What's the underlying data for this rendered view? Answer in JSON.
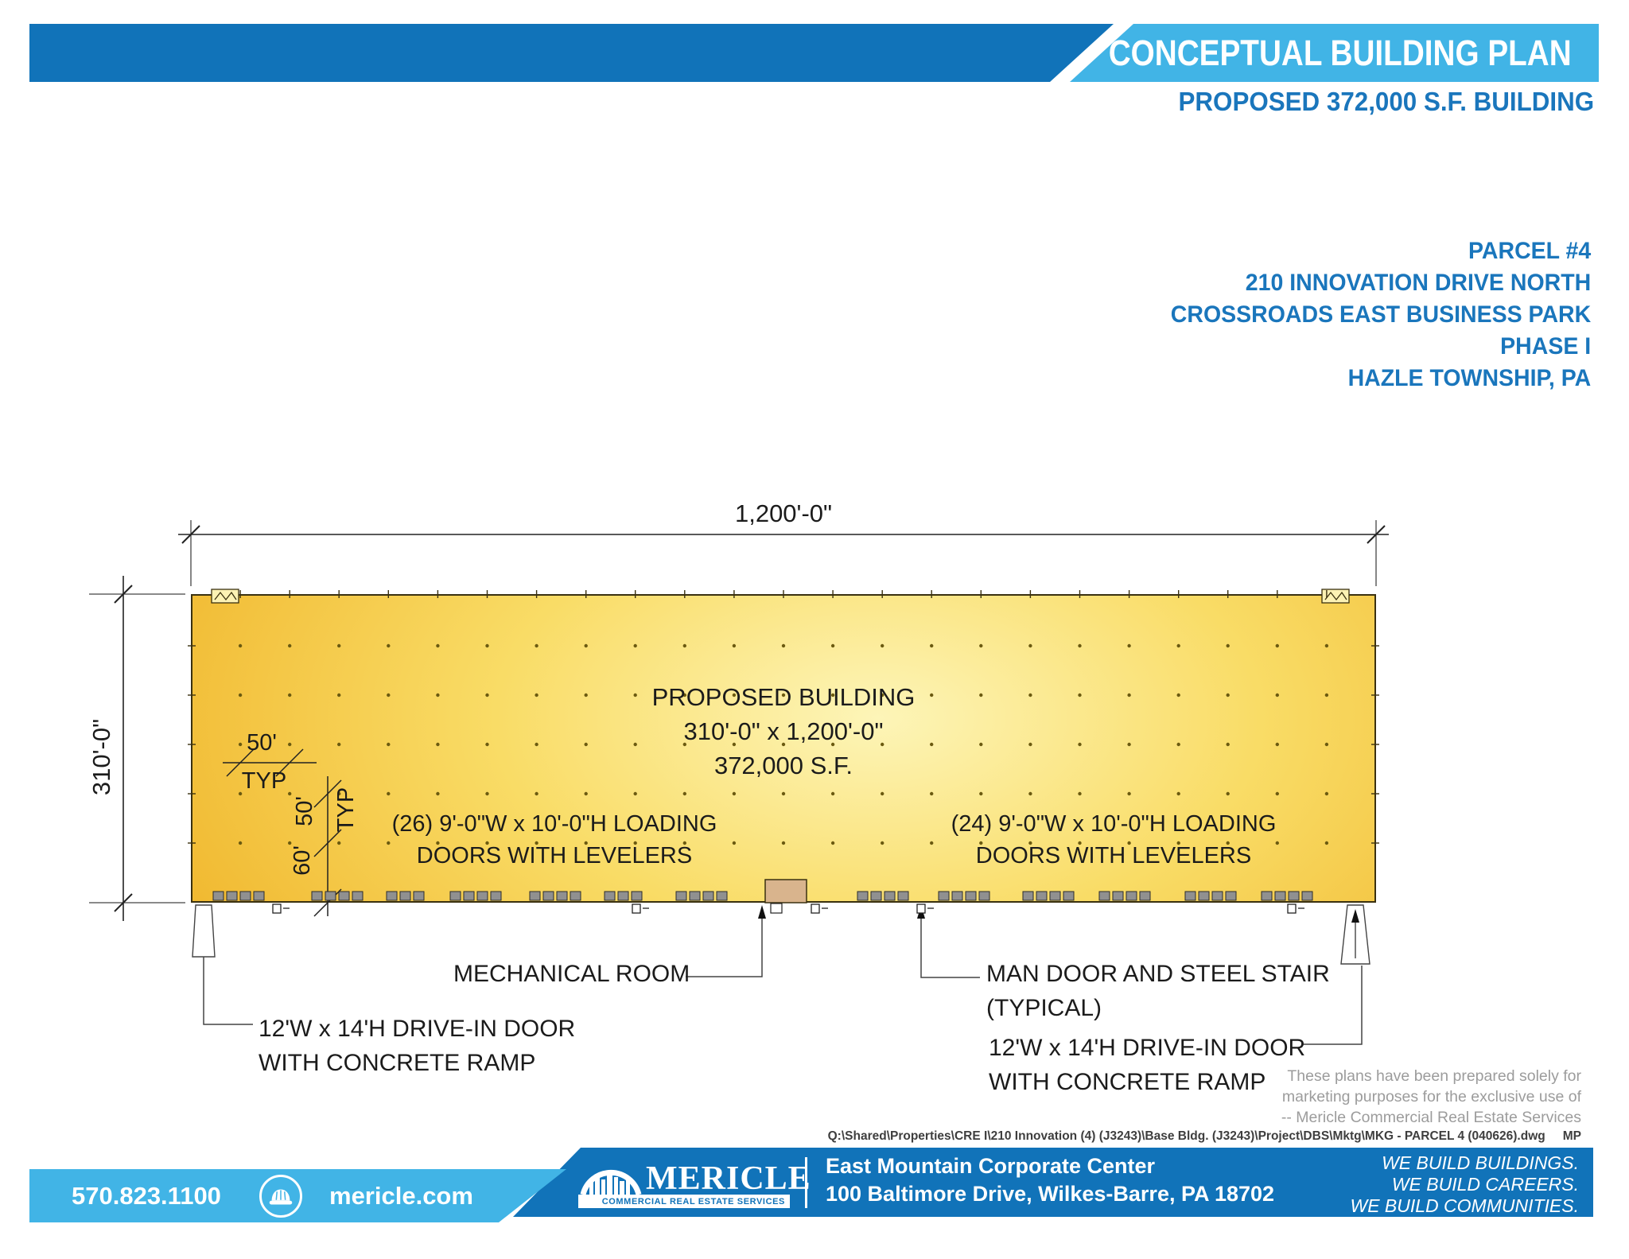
{
  "header": {
    "title": "CONCEPTUAL BUILDING PLAN",
    "subtitle": "PROPOSED 372,000 S.F. BUILDING"
  },
  "address": {
    "lines": [
      "PARCEL #4",
      "210 INNOVATION DRIVE NORTH",
      "CROSSROADS EAST BUSINESS PARK",
      "PHASE I",
      "HAZLE TOWNSHIP, PA"
    ]
  },
  "plan": {
    "dim_width": "1,200'-0\"",
    "dim_height": "310'-0\"",
    "building_title": "PROPOSED BUILDING",
    "building_dims": "310'-0\" x 1,200'-0\"",
    "building_area": "372,000 S.F.",
    "left_doors_line1": "(26) 9'-0\"W x 10'-0\"H LOADING",
    "left_doors_line2": "DOORS WITH LEVELERS",
    "right_doors_line1": "(24) 9'-0\"W x 10'-0\"H LOADING",
    "right_doors_line2": "DOORS WITH LEVELERS",
    "bay_width_label": "50'",
    "bay_width_typ": "TYP",
    "bay_depth_label": "50'",
    "bay_depth_typ": "TYP",
    "end_bay_label": "60'"
  },
  "callouts": {
    "mechanical": "MECHANICAL ROOM",
    "man_door_line1": "MAN DOOR AND STEEL STAIR",
    "man_door_line2": "(TYPICAL)",
    "left_drive_line1": "12'W x 14'H DRIVE-IN DOOR",
    "left_drive_line2": "WITH CONCRETE RAMP",
    "right_drive_line1": "12'W x 14'H DRIVE-IN DOOR",
    "right_drive_line2": "WITH CONCRETE RAMP"
  },
  "disclaimer": {
    "lines": [
      "These plans have been prepared solely for",
      "marketing purposes for the exclusive use of",
      "-- Mericle Commercial Real Estate Services"
    ]
  },
  "file_ref": {
    "path": "Q:\\Shared\\Properties\\CRE I\\210 Innovation (4) (J3243)\\Base Bldg. (J3243)\\Project\\DBS\\Mktg\\MKG - PARCEL 4 (040626).dwg",
    "initials": "MP"
  },
  "footer": {
    "phone": "570.823.1100",
    "website": "mericle.com",
    "logo_name": "MERICLE",
    "logo_tagline": "COMMERCIAL REAL ESTATE SERVICES",
    "address_line1": "East Mountain Corporate Center",
    "address_line2": "100 Baltimore Drive, Wilkes-Barre, PA 18702",
    "slogan_lines": [
      "WE BUILD BUILDINGS.",
      "WE BUILD CAREERS.",
      "WE BUILD COMMUNITIES."
    ]
  },
  "colors": {
    "dark_blue": "#1173b9",
    "light_blue": "#41b4e6",
    "text_blue": "#1a76bc",
    "building_gold": "#f0b62c",
    "building_light": "#fdf5b8",
    "door_gray": "#909090",
    "mech_tan": "#d9b48d"
  }
}
